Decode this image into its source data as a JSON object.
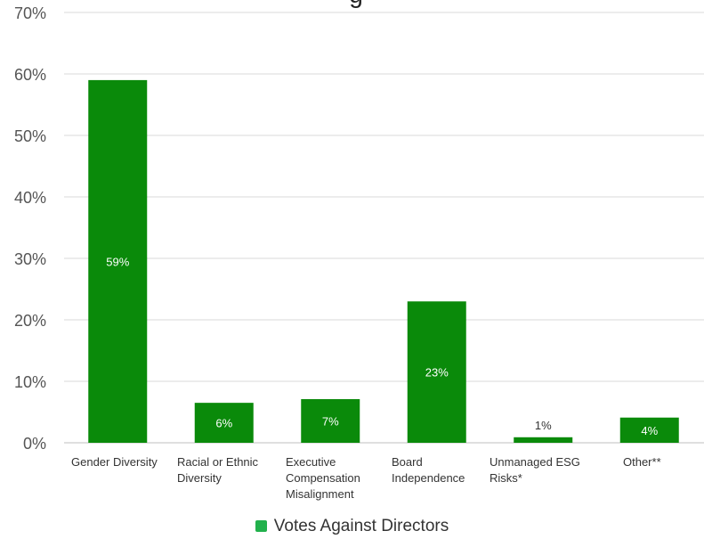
{
  "chart_data": {
    "type": "bar",
    "title": "g",
    "categories": [
      "Gender Diversity",
      "Racial or Ethnic Diversity",
      "Executive Compensation Misalignment",
      "Board Independence",
      "Unmanaged ESG Risks*",
      "Other**"
    ],
    "series": [
      {
        "name": "Votes Against Directors",
        "values": [
          59,
          6.5,
          7.1,
          23,
          0.9,
          4.1
        ],
        "data_labels": [
          "59%",
          "6%",
          "7%",
          "23%",
          "1%",
          "4%"
        ],
        "color": "#0a8a0a"
      }
    ],
    "ylim": [
      0,
      70
    ],
    "y_ticks": [
      "0%",
      "10%",
      "20%",
      "30%",
      "40%",
      "50%",
      "60%",
      "70%"
    ],
    "grid": true,
    "legend_position": "bottom-center",
    "label_color": "#ffffff",
    "small_bar_label_color": "#333333",
    "legend_swatch_color": "#22b14c"
  }
}
